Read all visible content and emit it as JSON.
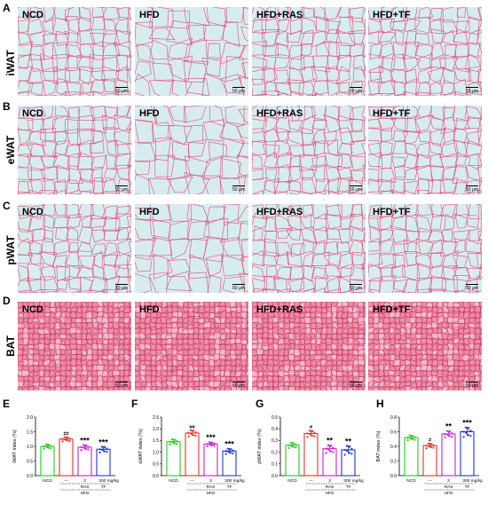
{
  "figure": {
    "panels": [
      "A",
      "B",
      "C",
      "D",
      "E",
      "F",
      "G",
      "H"
    ],
    "tissues": [
      "iWAT",
      "eWAT",
      "pWAT",
      "BAT"
    ],
    "groups": [
      "NCD",
      "HFD",
      "HFD+RAS",
      "HFD+TF"
    ],
    "scale_bar": "50 μm",
    "colors": {
      "wat_bg": "#d7ecef",
      "wat_line": "#e24a78",
      "bat_bg": "#ef8fa8",
      "bat_line": "#c03060",
      "ncd": "#22cc22",
      "hfd": "#e8322a",
      "ras": "#cc22cc",
      "tf": "#2233dd"
    }
  },
  "chart_data": [
    {
      "type": "bar",
      "ylabel": "iWAT index (%)",
      "ylim": [
        0,
        2.0
      ],
      "yticks": [
        "0.0",
        "0.5",
        "1.0",
        "1.5",
        "2.0"
      ],
      "categories": [
        "NCD",
        "HFD",
        "RAS",
        "TF"
      ],
      "values": [
        1.0,
        1.25,
        0.97,
        0.9
      ],
      "errors": [
        0.07,
        0.07,
        0.08,
        0.09
      ],
      "sig": [
        "",
        "##",
        "***",
        "***"
      ],
      "axis_row1": [
        "NCD",
        "---",
        "3",
        "300 mg/kg"
      ],
      "axis_row2": [
        "RAS",
        "TF"
      ],
      "axis_row3": "HFD"
    },
    {
      "type": "bar",
      "ylabel": "eWAT index (%)",
      "ylim": [
        0,
        2.5
      ],
      "yticks": [
        "0.0",
        "0.5",
        "1.0",
        "1.5",
        "2.0",
        "2.5"
      ],
      "categories": [
        "NCD",
        "HFD",
        "RAS",
        "TF"
      ],
      "values": [
        1.45,
        1.82,
        1.35,
        1.05
      ],
      "errors": [
        0.1,
        0.12,
        0.08,
        0.1
      ],
      "sig": [
        "",
        "##",
        "***",
        "***"
      ],
      "axis_row1": [
        "NCD",
        "---",
        "3",
        "300 mg/kg"
      ],
      "axis_row2": [
        "RAS",
        "TF"
      ],
      "axis_row3": "HFD"
    },
    {
      "type": "bar",
      "ylabel": "pWAT index (%)",
      "ylim": [
        0,
        0.5
      ],
      "yticks": [
        "0.0",
        "0.1",
        "0.2",
        "0.3",
        "0.4",
        "0.5"
      ],
      "categories": [
        "NCD",
        "HFD",
        "RAS",
        "TF"
      ],
      "values": [
        0.26,
        0.36,
        0.23,
        0.22
      ],
      "errors": [
        0.02,
        0.025,
        0.03,
        0.035
      ],
      "sig": [
        "",
        "#",
        "**",
        "**"
      ],
      "axis_row1": [
        "NCD",
        "---",
        "3",
        "300 mg/kg"
      ],
      "axis_row2": [
        "RAS",
        "TF"
      ],
      "axis_row3": "HFD"
    },
    {
      "type": "bar",
      "ylabel": "BAT index (%)",
      "ylim": [
        0,
        0.8
      ],
      "yticks": [
        "0.0",
        "0.2",
        "0.4",
        "0.6",
        "0.8"
      ],
      "categories": [
        "NCD",
        "HFD",
        "RAS",
        "TF"
      ],
      "values": [
        0.52,
        0.41,
        0.57,
        0.6
      ],
      "errors": [
        0.03,
        0.03,
        0.04,
        0.06
      ],
      "sig": [
        "",
        "#",
        "**",
        "***"
      ],
      "axis_row1": [
        "NCD",
        "---",
        "3",
        "300 mg/kg"
      ],
      "axis_row2": [
        "RAS",
        "TF"
      ],
      "axis_row3": "HFD"
    }
  ]
}
